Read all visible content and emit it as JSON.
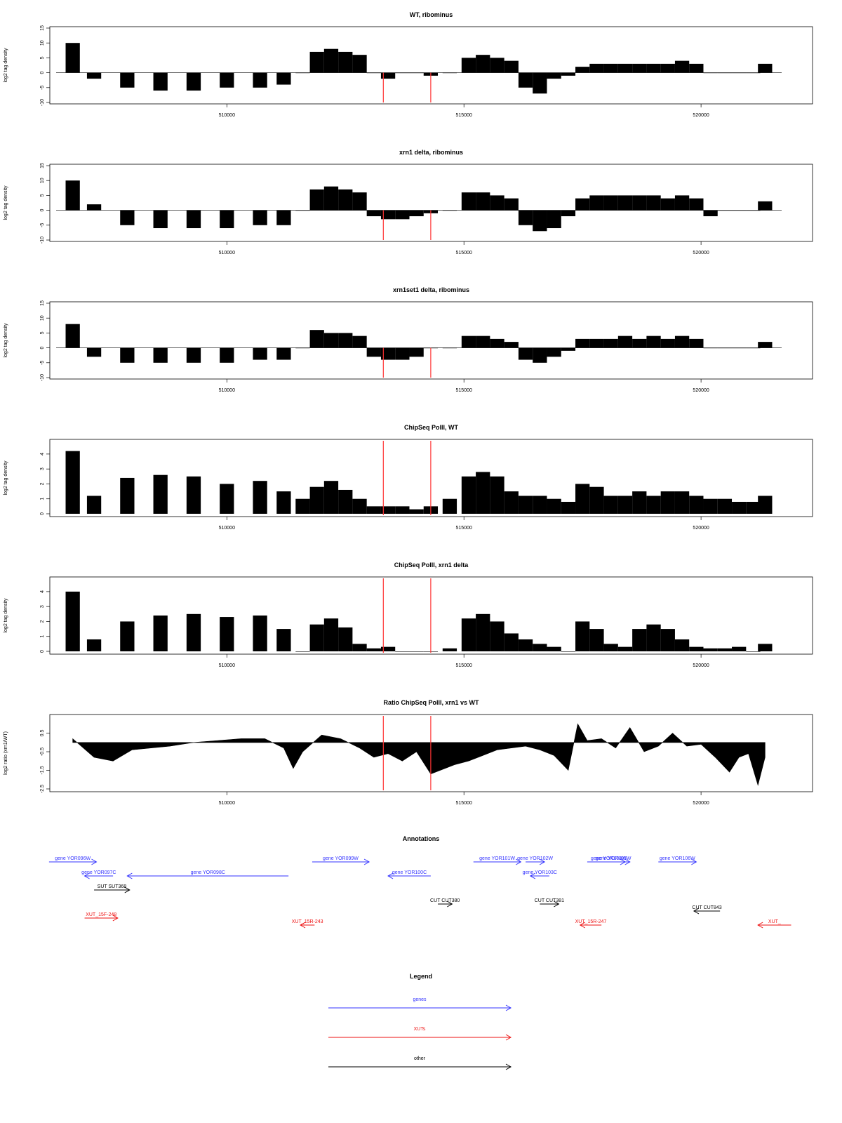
{
  "chart_data": [
    {
      "type": "bar",
      "title": "WT, ribominus",
      "ylabel": "log2 tag density",
      "yticks": [
        "-10",
        "-5",
        "0",
        "5",
        "10",
        "15"
      ],
      "ylim": [
        -10,
        15
      ],
      "xticks": [
        "510000",
        "515000",
        "520000"
      ],
      "xlim": [
        506400,
        521700
      ],
      "series": [
        {
          "x": [
            506750,
            507200,
            507900,
            508600,
            509300,
            510000,
            510700,
            511200,
            511600,
            511900,
            512200,
            512500,
            512800,
            513100,
            513400,
            513700,
            514000,
            514300,
            514700,
            515100,
            515400,
            515700,
            516000,
            516300,
            516600,
            516900,
            517200,
            517500,
            517800,
            518100,
            518400,
            518700,
            519000,
            519300,
            519600,
            519900,
            520200,
            520500,
            520800,
            521100,
            521350
          ],
          "y": [
            10,
            -2,
            -5,
            -6,
            -6,
            -5,
            -5,
            -4,
            0,
            7,
            8,
            7,
            6,
            0,
            -2,
            0,
            0,
            -1,
            0,
            5,
            6,
            5,
            4,
            -5,
            -7,
            -2,
            -1,
            2,
            3,
            3,
            3,
            3,
            3,
            3,
            4,
            3,
            0,
            0,
            0,
            0,
            3
          ]
        }
      ],
      "markers_x": [
        513300,
        514300
      ]
    },
    {
      "type": "bar",
      "title": "xrn1 delta, ribominus",
      "ylabel": "log2 tag density",
      "yticks": [
        "-10",
        "-5",
        "0",
        "5",
        "10",
        "15"
      ],
      "ylim": [
        -10,
        15
      ],
      "xticks": [
        "510000",
        "515000",
        "520000"
      ],
      "xlim": [
        506400,
        521700
      ],
      "series": [
        {
          "x": [
            506750,
            507200,
            507900,
            508600,
            509300,
            510000,
            510700,
            511200,
            511600,
            511900,
            512200,
            512500,
            512800,
            513100,
            513400,
            513700,
            514000,
            514300,
            514700,
            515100,
            515400,
            515700,
            516000,
            516300,
            516600,
            516900,
            517200,
            517500,
            517800,
            518100,
            518400,
            518700,
            519000,
            519300,
            519600,
            519900,
            520200,
            520500,
            520800,
            521100,
            521350
          ],
          "y": [
            10,
            2,
            -5,
            -6,
            -6,
            -6,
            -5,
            -5,
            0,
            7,
            8,
            7,
            6,
            -2,
            -3,
            -3,
            -2,
            -1,
            0,
            6,
            6,
            5,
            4,
            -5,
            -7,
            -6,
            -2,
            4,
            5,
            5,
            5,
            5,
            5,
            4,
            5,
            4,
            -2,
            0,
            0,
            0,
            3
          ]
        }
      ],
      "markers_x": [
        513300,
        514300
      ]
    },
    {
      "type": "bar",
      "title": "xrn1set1 delta, ribominus",
      "ylabel": "log2 tag density",
      "yticks": [
        "-10",
        "-5",
        "0",
        "5",
        "10",
        "15"
      ],
      "ylim": [
        -10,
        15
      ],
      "xticks": [
        "510000",
        "515000",
        "520000"
      ],
      "xlim": [
        506400,
        521700
      ],
      "series": [
        {
          "x": [
            506750,
            507200,
            507900,
            508600,
            509300,
            510000,
            510700,
            511200,
            511600,
            511900,
            512200,
            512500,
            512800,
            513100,
            513400,
            513700,
            514000,
            514300,
            514700,
            515100,
            515400,
            515700,
            516000,
            516300,
            516600,
            516900,
            517200,
            517500,
            517800,
            518100,
            518400,
            518700,
            519000,
            519300,
            519600,
            519900,
            520200,
            520500,
            520800,
            521100,
            521350
          ],
          "y": [
            8,
            -3,
            -5,
            -5,
            -5,
            -5,
            -4,
            -4,
            0,
            6,
            5,
            5,
            4,
            -3,
            -4,
            -4,
            -3,
            0,
            0,
            4,
            4,
            3,
            2,
            -4,
            -5,
            -3,
            -1,
            3,
            3,
            3,
            4,
            3,
            4,
            3,
            4,
            3,
            0,
            0,
            0,
            0,
            2
          ]
        }
      ],
      "markers_x": [
        513300,
        514300
      ]
    },
    {
      "type": "bar",
      "title": "ChipSeq PolII, WT",
      "ylabel": "log2 tag density",
      "yticks": [
        "0",
        "1",
        "2",
        "3",
        "4"
      ],
      "ylim": [
        0,
        4.7
      ],
      "xticks": [
        "510000",
        "515000",
        "520000"
      ],
      "xlim": [
        506400,
        521700
      ],
      "series": [
        {
          "x": [
            506750,
            507200,
            507900,
            508600,
            509300,
            510000,
            510700,
            511200,
            511600,
            511900,
            512200,
            512500,
            512800,
            513100,
            513400,
            513700,
            514000,
            514300,
            514700,
            515100,
            515400,
            515700,
            516000,
            516300,
            516600,
            516900,
            517200,
            517500,
            517800,
            518100,
            518400,
            518700,
            519000,
            519300,
            519600,
            519900,
            520200,
            520500,
            520800,
            521100,
            521350
          ],
          "y": [
            4.2,
            1.2,
            2.4,
            2.6,
            2.5,
            2.0,
            2.2,
            1.5,
            1.0,
            1.8,
            2.2,
            1.6,
            1.0,
            0.5,
            0.5,
            0.5,
            0.3,
            0.5,
            1.0,
            2.5,
            2.8,
            2.5,
            1.5,
            1.2,
            1.2,
            1.0,
            0.8,
            2.0,
            1.8,
            1.2,
            1.2,
            1.5,
            1.2,
            1.5,
            1.5,
            1.2,
            1.0,
            1.0,
            0.8,
            0.8,
            1.2
          ]
        }
      ],
      "markers_x": [
        513300,
        514300
      ]
    },
    {
      "type": "bar",
      "title": "ChipSeq PolII, xrn1 delta",
      "ylabel": "log2 tag density",
      "yticks": [
        "0",
        "1",
        "2",
        "3",
        "4"
      ],
      "ylim": [
        0,
        4.7
      ],
      "xticks": [
        "510000",
        "515000",
        "520000"
      ],
      "xlim": [
        506400,
        521700
      ],
      "series": [
        {
          "x": [
            506750,
            507200,
            507900,
            508600,
            509300,
            510000,
            510700,
            511200,
            511600,
            511900,
            512200,
            512500,
            512800,
            513100,
            513400,
            513700,
            514000,
            514300,
            514700,
            515100,
            515400,
            515700,
            516000,
            516300,
            516600,
            516900,
            517200,
            517500,
            517800,
            518100,
            518400,
            518700,
            519000,
            519300,
            519600,
            519900,
            520200,
            520500,
            520800,
            521100,
            521350
          ],
          "y": [
            4.0,
            0.8,
            2.0,
            2.4,
            2.5,
            2.3,
            2.4,
            1.5,
            0.0,
            1.8,
            2.2,
            1.6,
            0.5,
            0.2,
            0.3,
            0.0,
            0.0,
            0.0,
            0.2,
            2.2,
            2.5,
            2.0,
            1.2,
            0.8,
            0.5,
            0.3,
            0.0,
            2.0,
            1.5,
            0.5,
            0.3,
            1.5,
            1.8,
            1.5,
            0.8,
            0.3,
            0.2,
            0.2,
            0.3,
            0.0,
            0.5
          ]
        }
      ],
      "markers_x": [
        513300,
        514300
      ]
    },
    {
      "type": "area",
      "title": "Ratio ChipSeq PolII, xrn1 vs WT",
      "ylabel": "log2 ratio (xrn1/WT)",
      "yticks": [
        "-2.5",
        "-1.5",
        "-0.5",
        "0.5"
      ],
      "ylim": [
        -2.5,
        1.2
      ],
      "xticks": [
        "510000",
        "515000",
        "520000"
      ],
      "xlim": [
        506400,
        521700
      ],
      "series": [
        {
          "x": [
            506750,
            507200,
            507600,
            508000,
            508400,
            508800,
            509300,
            509800,
            510300,
            510800,
            511200,
            511400,
            511600,
            512000,
            512400,
            512800,
            513100,
            513400,
            513700,
            514000,
            514300,
            514500,
            514800,
            515100,
            515400,
            515700,
            516000,
            516300,
            516600,
            516900,
            517200,
            517400,
            517600,
            517900,
            518200,
            518500,
            518800,
            519100,
            519400,
            519700,
            520000,
            520300,
            520600,
            520800,
            521000,
            521200,
            521350
          ],
          "y": [
            0.2,
            -0.8,
            -1.0,
            -0.4,
            -0.3,
            -0.2,
            0.0,
            0.1,
            0.2,
            0.2,
            -0.3,
            -1.4,
            -0.5,
            0.4,
            0.2,
            -0.3,
            -0.8,
            -0.6,
            -1.0,
            -0.5,
            -1.7,
            -1.5,
            -1.2,
            -1.0,
            -0.7,
            -0.4,
            -0.3,
            -0.2,
            -0.4,
            -0.7,
            -1.5,
            1.0,
            0.1,
            0.2,
            -0.3,
            0.8,
            -0.5,
            -0.2,
            0.5,
            -0.2,
            -0.1,
            -0.8,
            -1.6,
            -0.8,
            -0.6,
            -2.3,
            -0.8
          ]
        }
      ],
      "markers_x": [
        513300,
        514300
      ]
    }
  ],
  "annotations": {
    "title": "Annotations",
    "items": [
      {
        "label": "gene YOR096W",
        "x1": 506250,
        "x2": 507250,
        "row": 1,
        "dir": "right",
        "kind": "gene"
      },
      {
        "label": "gene YOR097C",
        "x1": 507000,
        "x2": 507600,
        "row": 2,
        "dir": "left",
        "kind": "gene"
      },
      {
        "label": "gene YOR098C",
        "x1": 507900,
        "x2": 511300,
        "row": 2,
        "dir": "left",
        "kind": "gene"
      },
      {
        "label": "gene YOR099W",
        "x1": 511800,
        "x2": 513000,
        "row": 1,
        "dir": "right",
        "kind": "gene"
      },
      {
        "label": "gene YOR100C",
        "x1": 513400,
        "x2": 514300,
        "row": 2,
        "dir": "left",
        "kind": "gene"
      },
      {
        "label": "gene YOR101W",
        "x1": 515200,
        "x2": 516200,
        "row": 1,
        "dir": "right",
        "kind": "gene"
      },
      {
        "label": "gene YOR102W",
        "x1": 516300,
        "x2": 516700,
        "row": 1,
        "dir": "right",
        "kind": "gene"
      },
      {
        "label": "gene YOR103C",
        "x1": 516400,
        "x2": 516800,
        "row": 2,
        "dir": "left",
        "kind": "gene"
      },
      {
        "label": "gene YOR104W",
        "x1": 517600,
        "x2": 518500,
        "row": 1,
        "dir": "right",
        "kind": "gene"
      },
      {
        "label": "gene YOR105W",
        "x1": 517900,
        "x2": 518400,
        "row": 1,
        "dir": "right",
        "kind": "gene"
      },
      {
        "label": "gene YOR106W",
        "x1": 519100,
        "x2": 519900,
        "row": 1,
        "dir": "right",
        "kind": "gene"
      },
      {
        "label": "SUT SUT368",
        "x1": 507200,
        "x2": 507950,
        "row": 3,
        "dir": "right",
        "kind": "other"
      },
      {
        "label": "CUT CUT380",
        "x1": 514450,
        "x2": 514750,
        "row": 4,
        "dir": "right",
        "kind": "other"
      },
      {
        "label": "CUT CUT381",
        "x1": 516600,
        "x2": 517000,
        "row": 4,
        "dir": "right",
        "kind": "other"
      },
      {
        "label": "CUT CUT843",
        "x1": 519850,
        "x2": 520400,
        "row": 4.5,
        "dir": "left",
        "kind": "other"
      },
      {
        "label": "XUT_15F-248",
        "x1": 507000,
        "x2": 507700,
        "row": 5,
        "dir": "right",
        "kind": "xut"
      },
      {
        "label": "XUT_15R-243",
        "x1": 511550,
        "x2": 511850,
        "row": 5.5,
        "dir": "left",
        "kind": "xut"
      },
      {
        "label": "XUT_15R-247",
        "x1": 517450,
        "x2": 517900,
        "row": 5.5,
        "dir": "left",
        "kind": "xut"
      },
      {
        "label": "XUT_",
        "x1": 521200,
        "x2": 521900,
        "row": 5.5,
        "dir": "left",
        "kind": "xut"
      }
    ]
  },
  "legend": {
    "title": "Legend",
    "entries": [
      {
        "label": "genes",
        "kind": "gene"
      },
      {
        "label": "XUTs",
        "kind": "xut"
      },
      {
        "label": "other",
        "kind": "other"
      }
    ]
  },
  "colors": {
    "gene": "#3333ff",
    "xut": "#ee1111",
    "other": "#000000",
    "marker": "#ff3333",
    "bars": "#000000"
  }
}
